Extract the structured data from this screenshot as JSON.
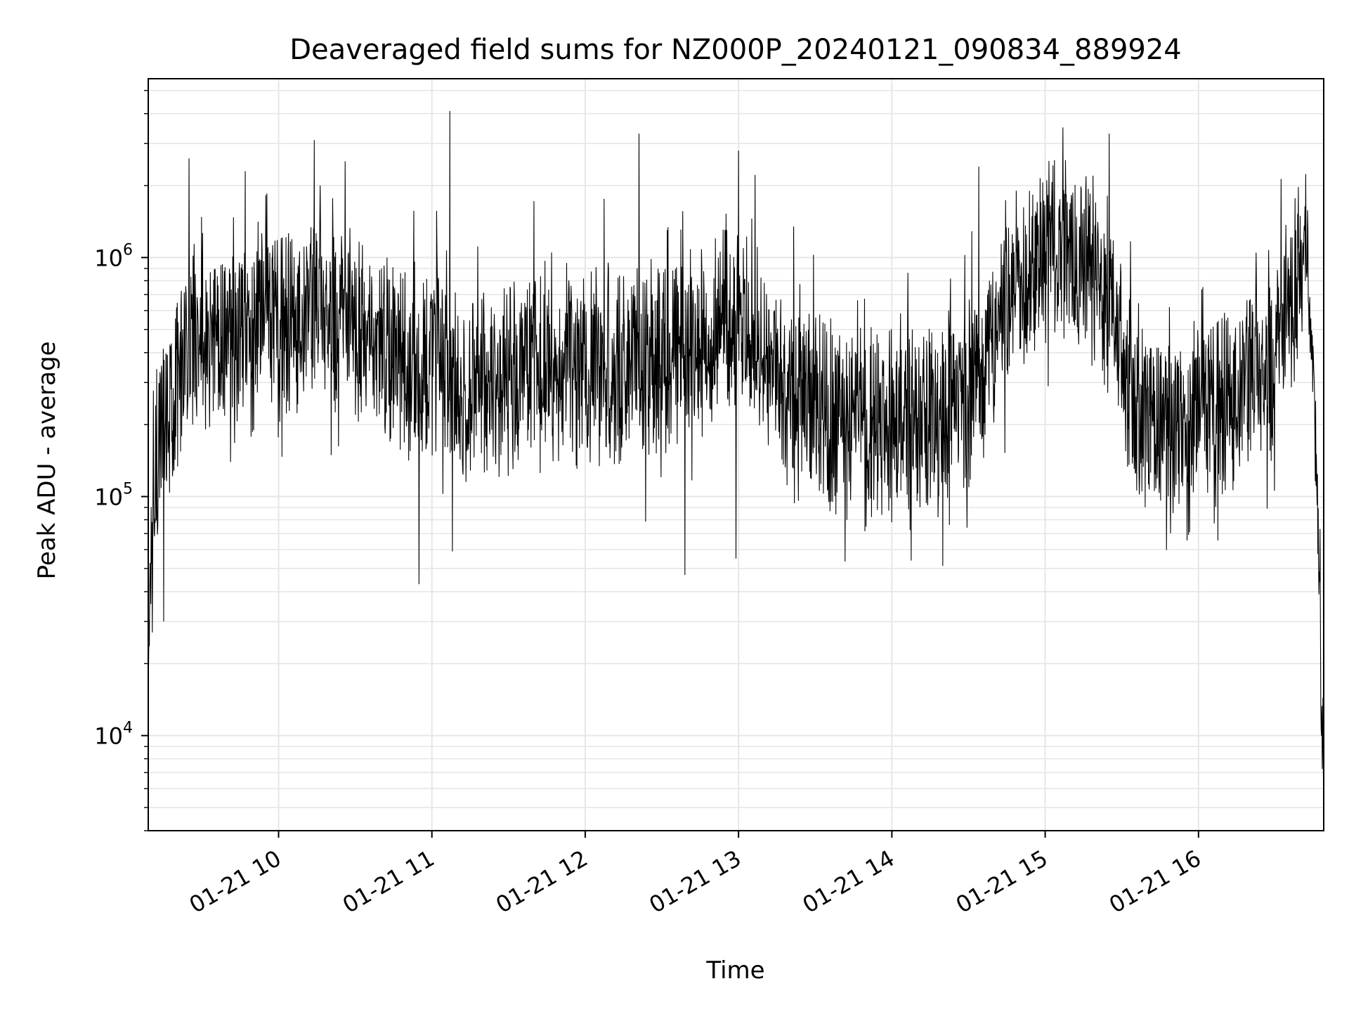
{
  "chart_data": {
    "type": "line",
    "title": "Deaveraged field sums for NZ000P_20240121_090834_889924",
    "xlabel": "Time",
    "ylabel": "Peak ADU - average",
    "yscale": "log",
    "grid": true,
    "line_color": "#000000",
    "grid_color": "#e6e6e6",
    "xlim": [
      "2024-01-21 09:09",
      "2024-01-21 16:49"
    ],
    "ylim": [
      4000,
      5600000
    ],
    "x_ticks": [
      "01-21 10",
      "01-21 11",
      "01-21 12",
      "01-21 13",
      "01-21 14",
      "01-21 15",
      "01-21 16"
    ],
    "y_ticks": [
      {
        "base": "10",
        "exp": "4"
      },
      {
        "base": "10",
        "exp": "5"
      },
      {
        "base": "10",
        "exp": "6"
      }
    ],
    "series": [
      {
        "x_start": "2024-01-21 09:09",
        "x_end": "2024-01-21 16:49",
        "envelope": [
          {
            "t": "09:09",
            "y": 20000
          },
          {
            "t": "09:12",
            "y": 150000
          },
          {
            "t": "09:25",
            "y": 500000
          },
          {
            "t": "09:45",
            "y": 450000
          },
          {
            "t": "10:15",
            "y": 600000
          },
          {
            "t": "10:45",
            "y": 400000
          },
          {
            "t": "11:15",
            "y": 280000
          },
          {
            "t": "11:45",
            "y": 350000
          },
          {
            "t": "12:15",
            "y": 350000
          },
          {
            "t": "12:45",
            "y": 450000
          },
          {
            "t": "13:00",
            "y": 600000
          },
          {
            "t": "13:20",
            "y": 250000
          },
          {
            "t": "13:45",
            "y": 200000
          },
          {
            "t": "14:15",
            "y": 220000
          },
          {
            "t": "14:30",
            "y": 250000
          },
          {
            "t": "14:45",
            "y": 650000
          },
          {
            "t": "15:00",
            "y": 1150000
          },
          {
            "t": "15:15",
            "y": 1000000
          },
          {
            "t": "15:25",
            "y": 700000
          },
          {
            "t": "15:35",
            "y": 250000
          },
          {
            "t": "15:55",
            "y": 170000
          },
          {
            "t": "16:10",
            "y": 250000
          },
          {
            "t": "16:30",
            "y": 350000
          },
          {
            "t": "16:40",
            "y": 900000
          },
          {
            "t": "16:42",
            "y": 1100000
          },
          {
            "t": "16:45",
            "y": 350000
          },
          {
            "t": "16:47",
            "y": 50000
          },
          {
            "t": "16:49",
            "y": 6000
          }
        ],
        "peaks": [
          {
            "t": "09:25",
            "y": 2600000
          },
          {
            "t": "09:47",
            "y": 2300000
          },
          {
            "t": "10:14",
            "y": 3100000
          },
          {
            "t": "11:07",
            "y": 4100000
          },
          {
            "t": "12:21",
            "y": 3300000
          },
          {
            "t": "13:00",
            "y": 2800000
          },
          {
            "t": "14:34",
            "y": 2400000
          },
          {
            "t": "15:07",
            "y": 3500000
          },
          {
            "t": "15:25",
            "y": 3300000
          }
        ],
        "troughs": [
          {
            "t": "09:09",
            "y": 20000
          },
          {
            "t": "09:15",
            "y": 30000
          },
          {
            "t": "10:55",
            "y": 43000
          },
          {
            "t": "12:39",
            "y": 47000
          },
          {
            "t": "12:59",
            "y": 55000
          },
          {
            "t": "16:49",
            "y": 5500
          }
        ]
      }
    ]
  }
}
